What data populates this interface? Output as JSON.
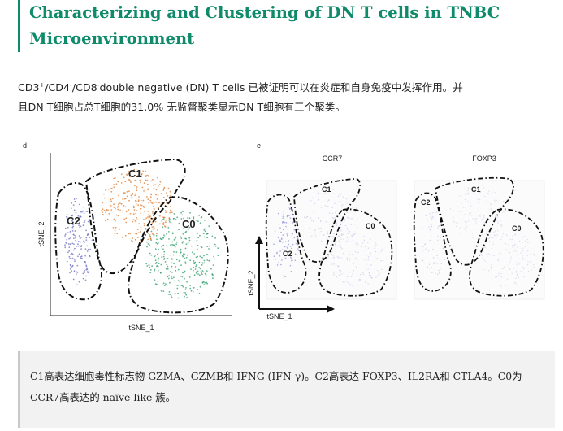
{
  "article": {
    "title": "Characterizing and Clustering of DN T cells in TNBC Microenvironment"
  },
  "intro": {
    "cd3": "CD3",
    "cd3_sup": "+",
    "cd4": "/CD4",
    "cd4_sup": "-",
    "cd8": "/CD8",
    "cd8_sup": "-",
    "rest_line1": "double negative (DN) T cells 已被证明可以在炎症和自身免疫中发挥作用。并",
    "line2": "且DN T细胞占总T细胞的31.0% 无监督聚类显示DN T细胞有三个聚类。"
  },
  "figure": {
    "panel_d": {
      "panel_letter": "d",
      "xlabel": "tSNE_1",
      "ylabel": "tSNE_2",
      "clusters": [
        {
          "label": "C0",
          "color": "#2e9e6a"
        },
        {
          "label": "C1",
          "color": "#e07b2c"
        },
        {
          "label": "C2",
          "color": "#6b6fc4"
        }
      ]
    },
    "panel_e": {
      "panel_letter": "e",
      "xlabel": "tSNE_1",
      "ylabel": "tSNE_2",
      "plots": [
        {
          "title": "CCR7",
          "clusters": [
            "C1",
            "C2",
            "C0"
          ],
          "dot_color": "#8f8fe0"
        },
        {
          "title": "FOXP3",
          "clusters": [
            "C1",
            "C2",
            "C0"
          ],
          "dot_color": "#8f8fe0"
        }
      ]
    }
  },
  "note": {
    "text": "C1高表达细胞毒性标志物 GZMA、GZMB和 IFNG (IFN-γ)。C2高表达 FOXP3、IL2RA和 CTLA4。C0为 CCR7高表达的 naïve-like 簇。"
  }
}
